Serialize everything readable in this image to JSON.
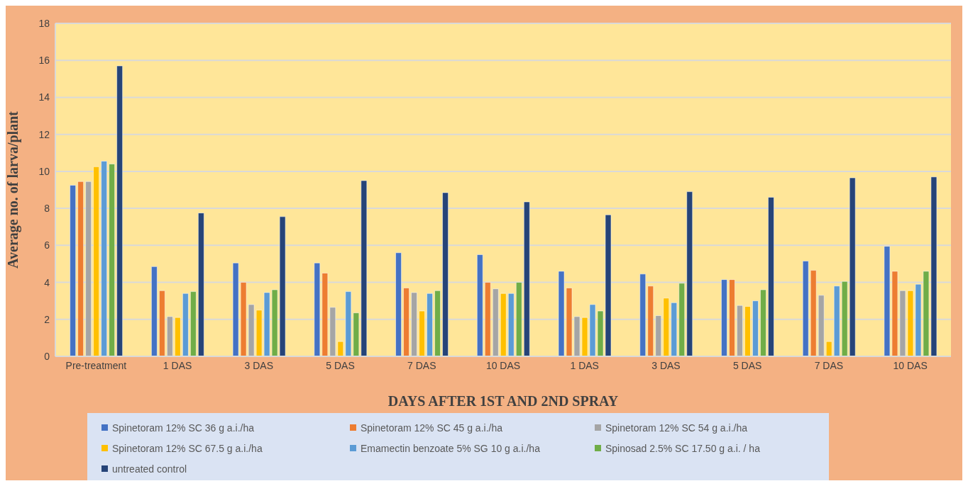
{
  "chart_data": {
    "type": "bar",
    "xlabel": "DAYS AFTER 1ST AND 2ND SPRAY",
    "ylabel": "Average no. of larva/plant",
    "categories": [
      "Pre-treatment",
      "1 DAS",
      "3 DAS",
      "5 DAS",
      "7 DAS",
      "10 DAS",
      "1 DAS",
      "3 DAS",
      "5 DAS",
      "7 DAS",
      "10 DAS"
    ],
    "series": [
      {
        "name": "Spinetoram 12% SC 36 g a.i./ha",
        "color": "#4472c4",
        "values": [
          9.25,
          4.85,
          5.05,
          5.05,
          5.6,
          5.5,
          4.6,
          4.45,
          4.15,
          5.15,
          5.95
        ]
      },
      {
        "name": "Spinetoram 12% SC 45 g a.i./ha",
        "color": "#ed7d31",
        "values": [
          9.45,
          3.55,
          4.0,
          4.5,
          3.7,
          4.0,
          3.7,
          3.8,
          4.15,
          4.65,
          4.6
        ]
      },
      {
        "name": "Spinetoram 12% SC 54 g a.i./ha",
        "color": "#a5a5a5",
        "values": [
          9.45,
          2.15,
          2.8,
          2.65,
          3.45,
          3.65,
          2.15,
          2.2,
          2.75,
          3.3,
          3.55
        ]
      },
      {
        "name": "Spinetoram 12% SC 67.5 g a.i./ha",
        "color": "#ffc000",
        "values": [
          10.25,
          2.1,
          2.5,
          0.8,
          2.45,
          3.4,
          2.1,
          3.15,
          2.7,
          0.8,
          3.55
        ]
      },
      {
        "name": "Emamectin benzoate 5% SG 10 g a.i./ha",
        "color": "#5b9bd5",
        "values": [
          10.55,
          3.4,
          3.45,
          3.5,
          3.4,
          3.4,
          2.8,
          2.9,
          3.0,
          3.8,
          3.9
        ]
      },
      {
        "name": "Spinosad 2.5% SC 17.50 g a.i. / ha",
        "color": "#70ad47",
        "values": [
          10.4,
          3.5,
          3.6,
          2.35,
          3.55,
          4.0,
          2.45,
          3.95,
          3.6,
          4.05,
          4.6
        ]
      },
      {
        "name": "untreated control",
        "color": "#264478",
        "values": [
          15.7,
          7.75,
          7.55,
          9.5,
          8.85,
          8.35,
          7.65,
          8.9,
          8.6,
          9.65,
          9.7
        ]
      }
    ],
    "ylim": [
      0,
      18
    ],
    "yticks": [
      0,
      2,
      4,
      6,
      8,
      10,
      12,
      14,
      16,
      18
    ],
    "grid": "y",
    "legend": "bottom"
  }
}
